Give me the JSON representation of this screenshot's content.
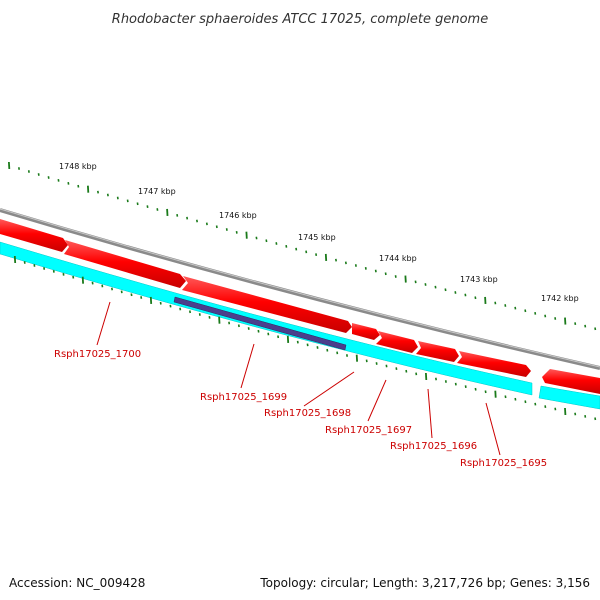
{
  "title": "Rhodobacter sphaeroides ATCC 17025, complete genome",
  "scale_labels": [
    "1748 kbp",
    "1747 kbp",
    "1746 kbp",
    "1745 kbp",
    "1744 kbp",
    "1743 kbp",
    "1742 kbp"
  ],
  "gene_labels": [
    "Rsph17025_1700",
    "Rsph17025_1699",
    "Rsph17025_1698",
    "Rsph17025_1697",
    "Rsph17025_1696",
    "Rsph17025_1695"
  ],
  "footer": {
    "accession": "Accession: NC_009428",
    "summary": "Topology: circular; Length: 3,217,726 bp; Genes: 3,156"
  },
  "colors": {
    "forward_cds": "#ff0000",
    "reverse_cds": "#00ffff",
    "backbone": "#808080",
    "highlight": "#4b3f8c",
    "ticks": "#1a7a1a",
    "labels": "#cc0000"
  }
}
